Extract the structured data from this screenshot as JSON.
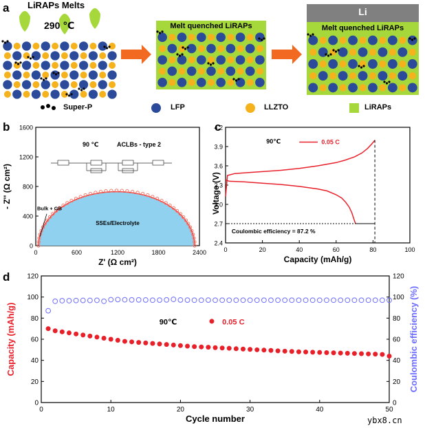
{
  "figure": {
    "panel_a": {
      "letter": "a",
      "melt_label": "LiRAPs Melts",
      "temperature": "290 ℃",
      "box2_title": "Melt quenched LiRAPs",
      "box3_li": "Li",
      "box3_title": "Melt quenched LiRAPs",
      "legend": [
        {
          "key": "super_p",
          "label": "Super-P"
        },
        {
          "key": "lfp",
          "label": "LFP"
        },
        {
          "key": "llzto",
          "label": "LLZTO"
        },
        {
          "key": "liraps",
          "label": "LiRAPs"
        }
      ],
      "colors": {
        "lfp": "#2b4a9a",
        "llzto": "#f5b21c",
        "liraps": "#a6d83c",
        "arrow": "#f26a21",
        "li": "#808080",
        "super_p": "#000000"
      }
    },
    "panel_b": {
      "letter": "b"
    },
    "panel_c": {
      "letter": "c"
    },
    "panel_d": {
      "letter": "d"
    },
    "watermark": "ybx8.cn"
  },
  "chart_data": [
    {
      "id": "b",
      "type": "scatter",
      "xlabel": "Z' (Ω cm²)",
      "ylabel": "- Z'' (Ω cm²)",
      "xlim": [
        0,
        2400
      ],
      "ylim": [
        0,
        1600
      ],
      "xticks": [
        0,
        600,
        1200,
        1800,
        2400
      ],
      "yticks": [
        0,
        400,
        800,
        1200,
        1600
      ],
      "annotations": {
        "temperature": "90 ℃",
        "cell": "ACLBs - type 2",
        "region": "SSEs/Electrolyte",
        "bulk": "Bulk + GB"
      },
      "semicircle": {
        "x_start": 40,
        "x_end": 2330,
        "peak": 730
      },
      "colors": {
        "fill": "#8fd1ef",
        "points": "#f07a6a",
        "fit": "#ff3030"
      }
    },
    {
      "id": "c",
      "type": "line",
      "xlabel": "Capacity (mAh/g)",
      "ylabel": "Voltage (V)",
      "xlim": [
        0,
        100
      ],
      "ylim": [
        2.4,
        4.2
      ],
      "xticks": [
        0,
        20,
        40,
        60,
        80,
        100
      ],
      "yticks": [
        2.4,
        2.7,
        3.0,
        3.3,
        3.6,
        3.9,
        4.2
      ],
      "legend": {
        "temperature": "90℃",
        "label": "0.05 C"
      },
      "annotation": "Coulombic efficiency = 87.2 %",
      "series": [
        {
          "role": "charge",
          "x": [
            0,
            1,
            5,
            10,
            20,
            30,
            40,
            50,
            60,
            65,
            70,
            74,
            77,
            79,
            80.5,
            81
          ],
          "y": [
            3.12,
            3.45,
            3.48,
            3.49,
            3.51,
            3.53,
            3.56,
            3.6,
            3.65,
            3.69,
            3.74,
            3.8,
            3.87,
            3.93,
            3.98,
            4.0
          ]
        },
        {
          "role": "discharge",
          "x": [
            0,
            2,
            10,
            20,
            30,
            40,
            50,
            55,
            60,
            63,
            65,
            67,
            68.5,
            69.5,
            70.5
          ],
          "y": [
            3.38,
            3.36,
            3.35,
            3.33,
            3.31,
            3.28,
            3.24,
            3.21,
            3.15,
            3.1,
            3.04,
            2.96,
            2.87,
            2.78,
            2.7
          ]
        }
      ],
      "color": "#e8202a"
    },
    {
      "id": "d",
      "type": "scatter",
      "xlabel": "Cycle number",
      "ylabel_left": "Capacity (mAh/g)",
      "ylabel_right": "Coulombic efficiency (%)",
      "xlim": [
        0,
        50
      ],
      "ylim_left": [
        0,
        120
      ],
      "ylim_right": [
        0,
        120
      ],
      "xticks": [
        0,
        10,
        20,
        30,
        40,
        50
      ],
      "yticks": [
        0,
        20,
        40,
        60,
        80,
        100,
        120
      ],
      "legend": {
        "temperature": "90℃",
        "label": "0.05 C"
      },
      "series": [
        {
          "role": "capacity",
          "axis": "left",
          "x": [
            1,
            2,
            3,
            4,
            5,
            6,
            7,
            8,
            9,
            10,
            11,
            12,
            13,
            14,
            15,
            16,
            17,
            18,
            19,
            20,
            21,
            22,
            23,
            24,
            25,
            26,
            27,
            28,
            29,
            30,
            31,
            32,
            33,
            34,
            35,
            36,
            37,
            38,
            39,
            40,
            41,
            42,
            43,
            44,
            45,
            46,
            47,
            48,
            49,
            50
          ],
          "values": [
            70,
            68,
            67,
            66,
            65,
            64,
            63,
            62,
            61,
            60,
            59,
            58,
            57.5,
            57,
            56.5,
            56,
            55.5,
            55,
            54.5,
            54,
            53.5,
            53,
            52.7,
            52.4,
            52,
            51.7,
            51.4,
            51,
            50.7,
            50.4,
            50,
            49.7,
            49.4,
            49,
            48.7,
            48.4,
            48.1,
            47.9,
            47.7,
            47.5,
            47.3,
            47.1,
            46.9,
            46.7,
            46.5,
            46.3,
            46.1,
            45.9,
            45.6,
            44
          ]
        },
        {
          "role": "coulombic_efficiency",
          "axis": "right",
          "x": [
            1,
            2,
            3,
            4,
            5,
            6,
            7,
            8,
            9,
            10,
            11,
            12,
            13,
            14,
            15,
            16,
            17,
            18,
            19,
            20,
            21,
            22,
            23,
            24,
            25,
            26,
            27,
            28,
            29,
            30,
            31,
            32,
            33,
            34,
            35,
            36,
            37,
            38,
            39,
            40,
            41,
            42,
            43,
            44,
            45,
            46,
            47,
            48,
            49,
            50
          ],
          "values": [
            87,
            96,
            96.5,
            96.5,
            96.7,
            96.8,
            96.8,
            96.9,
            96,
            97.5,
            97.6,
            97.4,
            97.3,
            97.3,
            97.2,
            97,
            97.1,
            97.3,
            97.8,
            97.2,
            97.1,
            97.0,
            97.0,
            97.1,
            97.0,
            97.0,
            97.0,
            97.0,
            97.0,
            97.0,
            97.0,
            97.0,
            97.0,
            97.0,
            97.0,
            97.0,
            97.0,
            97.0,
            97.0,
            97.0,
            97.0,
            97.0,
            97.0,
            97.0,
            97.0,
            97.0,
            97.0,
            97.0,
            97.0,
            97.0
          ]
        }
      ],
      "colors": {
        "capacity": "#e8202a",
        "coulombic_efficiency": "#6b6bff"
      }
    }
  ]
}
